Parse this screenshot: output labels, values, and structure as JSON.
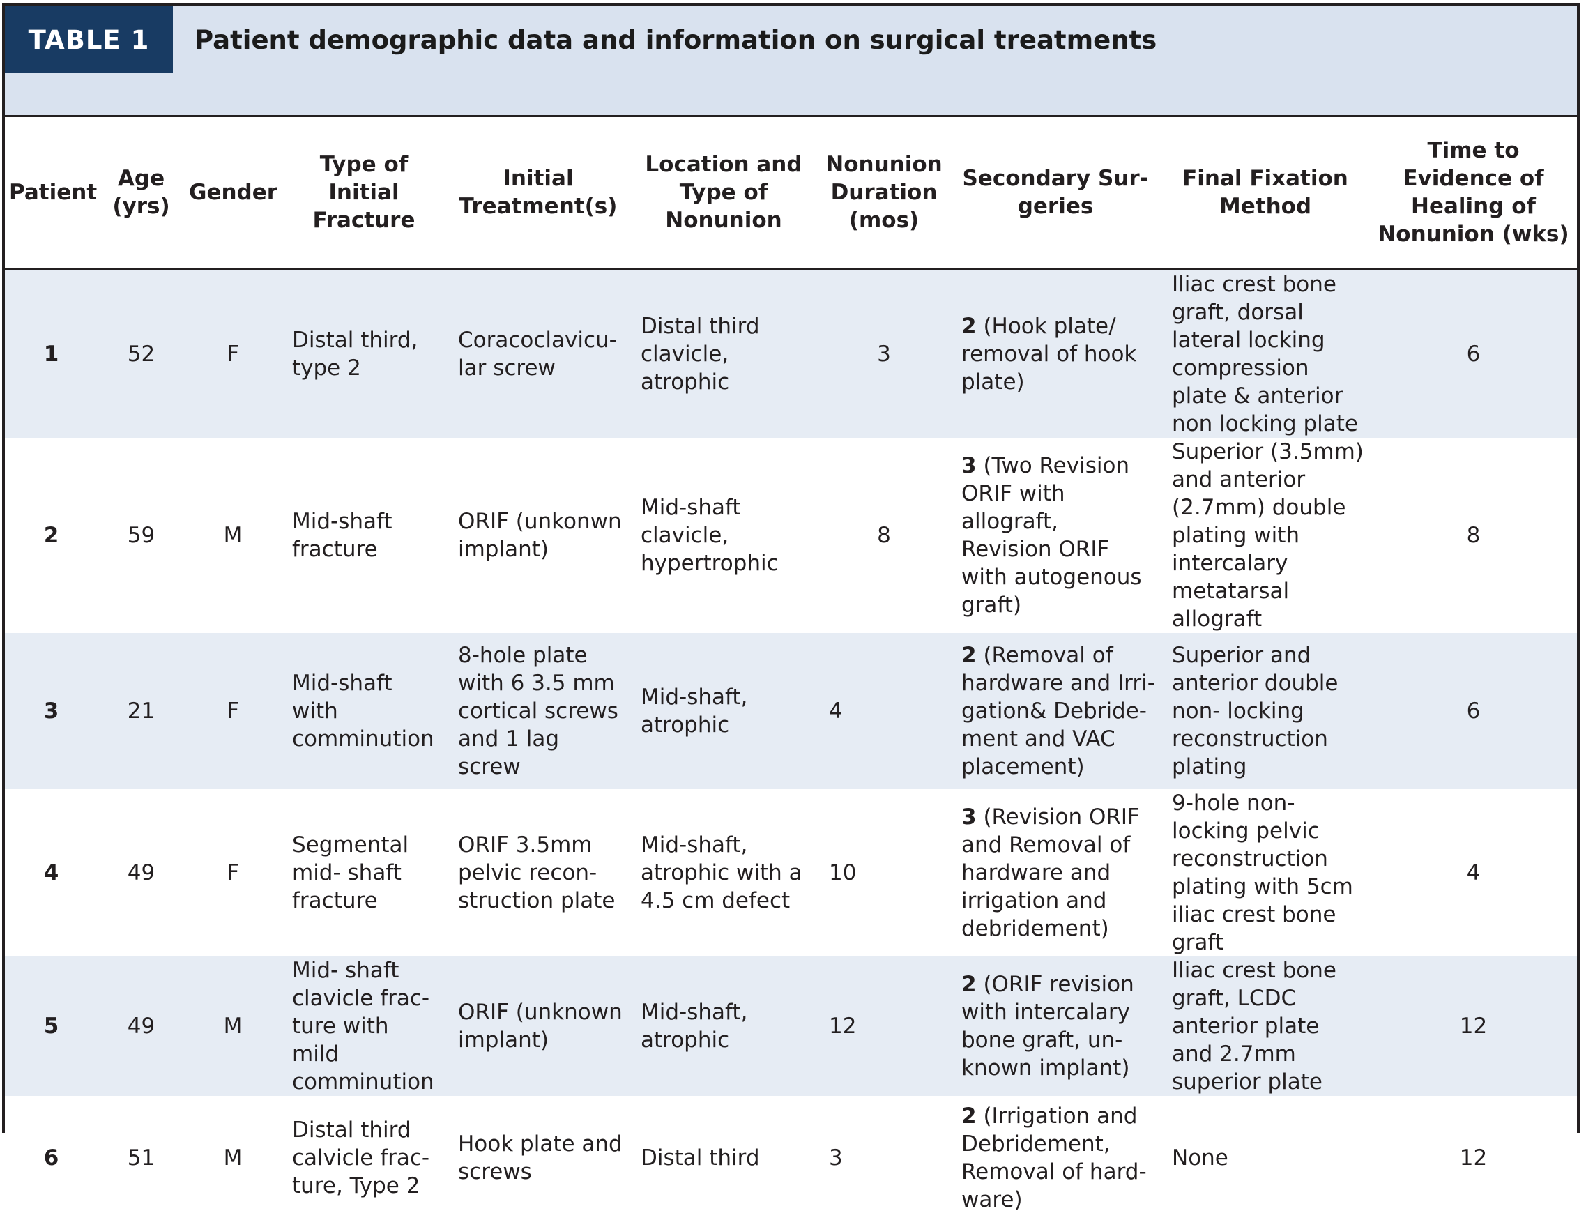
{
  "table_label": "TABLE 1",
  "title": "Patient demographic data and information on surgical treatments",
  "columns": [
    "Patient",
    "Age (yrs)",
    "Gender",
    "Type of Initial Fracture",
    "Initial Treatment(s)",
    "Location and Type of Nonunion",
    "Nonunion Duration (mos)",
    "Secondary Sur-geries",
    "Final Fixation Method",
    "Time to Evidence of Healing of Nonunion (wks)"
  ],
  "rows": [
    {
      "patient": "1",
      "age": "52",
      "gender": "F",
      "fracture": "Distal third, type 2",
      "initial_treatment": "Coracoclavicu-lar screw",
      "location": "Distal third clavicle, atrophic",
      "duration": "3",
      "secondary_count": "2",
      "secondary_detail": "(Hook plate/ removal of hook plate)",
      "final_fixation": "Iliac crest bone graft, dorsal lateral locking compression plate & anterior non locking plate",
      "healing": "6"
    },
    {
      "patient": "2",
      "age": "59",
      "gender": "M",
      "fracture": "Mid-shaft fracture",
      "initial_treatment": "ORIF (unkonwn implant)",
      "location": "Mid-shaft clavicle, hypertrophic",
      "duration": "8",
      "secondary_count": "3",
      "secondary_detail": "(Two Revision ORIF with allograft, Revision ORIF with autogenous graft)",
      "final_fixation": "Superior (3.5mm) and anterior (2.7mm) double plating with intercalary metatarsal allograft",
      "healing": "8"
    },
    {
      "patient": "3",
      "age": "21",
      "gender": "F",
      "fracture": "Mid-shaft with comminution",
      "initial_treatment": "8-hole plate with 6 3.5 mm cortical screws and 1 lag screw",
      "location": "Mid-shaft, atrophic",
      "duration": "4",
      "secondary_count": "2",
      "secondary_detail": "(Removal of hardware and Irri-gation& Debride-ment and VAC placement)",
      "final_fixation": "Superior and anterior double non- locking reconstruction plating",
      "healing": "6"
    },
    {
      "patient": "4",
      "age": "49",
      "gender": "F",
      "fracture": "Segmental mid- shaft fracture",
      "initial_treatment": "ORIF 3.5mm pelvic recon-struction plate",
      "location": "Mid-shaft, atrophic with a 4.5 cm defect",
      "duration": "10",
      "secondary_count": "3",
      "secondary_detail": "(Revision ORIF and Removal of hardware and irrigation and debridement)",
      "final_fixation": "9-hole non-locking pelvic reconstruction plating with 5cm iliac crest bone graft",
      "healing": "4"
    },
    {
      "patient": "5",
      "age": "49",
      "gender": "M",
      "fracture": "Mid- shaft clavicle frac-ture with mild comminution",
      "initial_treatment": "ORIF (unknown implant)",
      "location": "Mid-shaft, atrophic",
      "duration": "12",
      "secondary_count": "2",
      "secondary_detail": "(ORIF revision with intercalary bone graft, un-known implant)",
      "final_fixation": "Iliac crest bone graft, LCDC anterior plate and 2.7mm superior plate",
      "healing": "12"
    },
    {
      "patient": "6",
      "age": "51",
      "gender": "M",
      "fracture": "Distal third calvicle frac-ture, Type 2",
      "initial_treatment": "Hook plate and screws",
      "location": "Distal third",
      "duration": "3",
      "secondary_count": "2",
      "secondary_detail": "(Irrigation and Debridement, Removal of hard-ware)",
      "final_fixation": "None",
      "healing": "12"
    }
  ]
}
